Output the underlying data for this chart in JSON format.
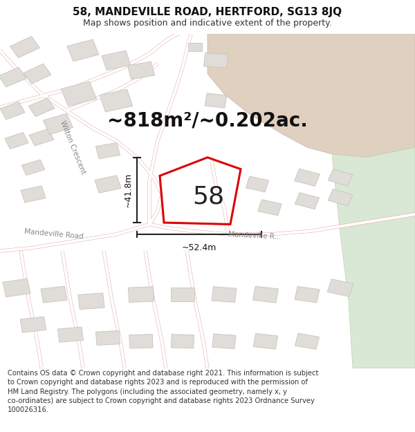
{
  "title": "58, MANDEVILLE ROAD, HERTFORD, SG13 8JQ",
  "subtitle": "Map shows position and indicative extent of the property.",
  "area_label": "~818m²/~0.202ac.",
  "number_label": "58",
  "dim_width_label": "~52.4m",
  "dim_height_label": "~41.8m",
  "footer": "Contains OS data © Crown copyright and database right 2021. This information is subject\nto Crown copyright and database rights 2023 and is reproduced with the permission of\nHM Land Registry. The polygons (including the associated geometry, namely x, y\nco-ordinates) are subject to Crown copyright and database rights 2023 Ordnance Survey\n100026316.",
  "map_bg": "#f8f6f4",
  "road_line_color": "#e8b8b0",
  "road_outline_color": "#d89088",
  "building_fill": "#e0dcd8",
  "building_outline": "#c8c4be",
  "plot_color": "#dd0000",
  "dim_color": "#222222",
  "area_text_color": "#111111",
  "label_color": "#888888",
  "tan_area_color": "#e0d0c0",
  "tan_area_outline": "#c8b8a8",
  "green_area_color": "#d8e8d4",
  "green_area_outline": "#c0d0bc",
  "white_road_fill": "#ffffff",
  "title_fontsize": 11,
  "subtitle_fontsize": 9,
  "area_fontsize": 20,
  "number_fontsize": 26,
  "dim_fontsize": 9,
  "footer_fontsize": 7.2,
  "road_label_fontsize": 7.5
}
